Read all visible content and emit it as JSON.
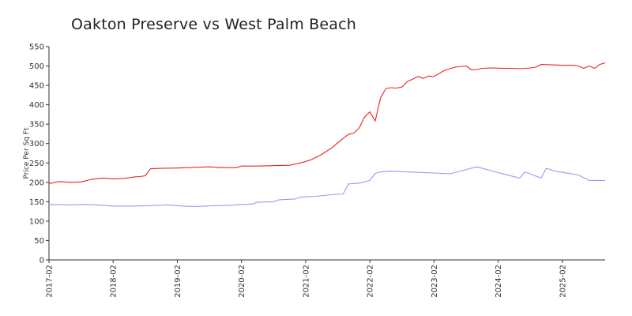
{
  "chart_data": {
    "type": "line",
    "title": "Oakton Preserve vs West Palm Beach",
    "xlabel": "",
    "ylabel": "Price Per Sq Ft",
    "ylim": [
      0,
      550
    ],
    "yticks": [
      0,
      50,
      100,
      150,
      200,
      250,
      300,
      350,
      400,
      450,
      500,
      550
    ],
    "xticks": [
      "2017-02",
      "2018-02",
      "2019-02",
      "2020-02",
      "2021-02",
      "2022-02",
      "2023-02",
      "2024-02",
      "2025-02"
    ],
    "x_range": [
      "2017-02",
      "2025-10"
    ],
    "grid": false,
    "legend": "none",
    "colors": {
      "red": "#ee2222",
      "blue": "#9999ee"
    },
    "series": [
      {
        "color": "#ee2222",
        "points": [
          [
            "2017-02",
            197
          ],
          [
            "2017-04",
            202
          ],
          [
            "2017-06",
            200
          ],
          [
            "2017-08",
            201
          ],
          [
            "2017-10",
            208
          ],
          [
            "2017-12",
            211
          ],
          [
            "2018-02",
            209
          ],
          [
            "2018-04",
            210
          ],
          [
            "2018-06",
            214
          ],
          [
            "2018-07",
            215
          ],
          [
            "2018-08",
            217
          ],
          [
            "2018-09",
            235
          ],
          [
            "2018-11",
            236
          ],
          [
            "2019-02",
            237
          ],
          [
            "2019-06",
            239
          ],
          [
            "2019-08",
            240
          ],
          [
            "2019-10",
            238
          ],
          [
            "2020-01",
            238
          ],
          [
            "2020-02",
            242
          ],
          [
            "2020-05",
            242
          ],
          [
            "2020-08",
            243
          ],
          [
            "2020-11",
            244
          ],
          [
            "2021-01",
            250
          ],
          [
            "2021-03",
            258
          ],
          [
            "2021-04",
            265
          ],
          [
            "2021-05",
            272
          ],
          [
            "2021-07",
            290
          ],
          [
            "2021-08",
            302
          ],
          [
            "2021-10",
            324
          ],
          [
            "2021-11",
            327
          ],
          [
            "2021-12",
            340
          ],
          [
            "2022-01",
            368
          ],
          [
            "2022-02",
            382
          ],
          [
            "2022-03",
            358
          ],
          [
            "2022-04",
            418
          ],
          [
            "2022-05",
            442
          ],
          [
            "2022-06",
            444
          ],
          [
            "2022-07",
            443
          ],
          [
            "2022-08",
            446
          ],
          [
            "2022-09",
            460
          ],
          [
            "2022-10",
            466
          ],
          [
            "2022-11",
            473
          ],
          [
            "2022-12",
            468
          ],
          [
            "2023-01",
            474
          ],
          [
            "2023-02",
            473
          ],
          [
            "2023-04",
            489
          ],
          [
            "2023-06",
            497
          ],
          [
            "2023-08",
            500
          ],
          [
            "2023-09",
            490
          ],
          [
            "2023-10",
            491
          ],
          [
            "2023-11",
            494
          ],
          [
            "2024-01",
            495
          ],
          [
            "2024-03",
            494
          ],
          [
            "2024-05",
            494
          ],
          [
            "2024-06",
            493
          ],
          [
            "2024-08",
            495
          ],
          [
            "2024-09",
            497
          ],
          [
            "2024-10",
            504
          ],
          [
            "2024-12",
            503
          ],
          [
            "2025-02",
            502
          ],
          [
            "2025-04",
            502
          ],
          [
            "2025-05",
            500
          ],
          [
            "2025-06",
            494
          ],
          [
            "2025-07",
            500
          ],
          [
            "2025-08",
            494
          ],
          [
            "2025-09",
            504
          ],
          [
            "2025-10",
            508
          ]
        ]
      },
      {
        "color": "#9999ee",
        "points": [
          [
            "2017-02",
            143
          ],
          [
            "2017-06",
            142
          ],
          [
            "2017-09",
            143
          ],
          [
            "2017-12",
            141
          ],
          [
            "2018-02",
            139
          ],
          [
            "2018-06",
            139
          ],
          [
            "2018-09",
            140
          ],
          [
            "2018-12",
            142
          ],
          [
            "2019-02",
            140
          ],
          [
            "2019-04",
            138
          ],
          [
            "2019-06",
            138
          ],
          [
            "2019-09",
            140
          ],
          [
            "2019-12",
            141
          ],
          [
            "2020-02",
            143
          ],
          [
            "2020-04",
            144
          ],
          [
            "2020-05",
            149
          ],
          [
            "2020-08",
            150
          ],
          [
            "2020-09",
            155
          ],
          [
            "2020-12",
            157
          ],
          [
            "2021-01",
            162
          ],
          [
            "2021-04",
            164
          ],
          [
            "2021-06",
            167
          ],
          [
            "2021-09",
            170
          ],
          [
            "2021-10",
            196
          ],
          [
            "2021-12",
            198
          ],
          [
            "2022-02",
            205
          ],
          [
            "2022-03",
            223
          ],
          [
            "2022-04",
            227
          ],
          [
            "2022-06",
            229
          ],
          [
            "2022-09",
            227
          ],
          [
            "2023-02",
            224
          ],
          [
            "2023-05",
            222
          ],
          [
            "2023-08",
            233
          ],
          [
            "2023-10",
            240
          ],
          [
            "2024-02",
            225
          ],
          [
            "2024-06",
            211
          ],
          [
            "2024-07",
            227
          ],
          [
            "2024-10",
            211
          ],
          [
            "2024-11",
            236
          ],
          [
            "2025-01",
            228
          ],
          [
            "2025-05",
            219
          ],
          [
            "2025-07",
            205
          ],
          [
            "2025-10",
            205
          ]
        ]
      }
    ]
  }
}
